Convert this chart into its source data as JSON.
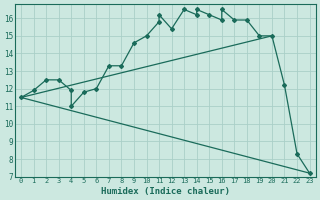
{
  "xlabel": "Humidex (Indice chaleur)",
  "bg_color": "#cce8e0",
  "grid_color": "#aacfc8",
  "line_color": "#1a6b5a",
  "xlim": [
    -0.5,
    23.5
  ],
  "ylim": [
    7,
    16.8
  ],
  "xticks": [
    0,
    1,
    2,
    3,
    4,
    5,
    6,
    7,
    8,
    9,
    10,
    11,
    12,
    13,
    14,
    15,
    16,
    17,
    18,
    19,
    20,
    21,
    22,
    23
  ],
  "yticks": [
    7,
    8,
    9,
    10,
    11,
    12,
    13,
    14,
    15,
    16
  ],
  "series1_x": [
    0,
    1,
    2,
    3,
    4,
    4,
    5,
    6,
    7,
    8,
    9,
    10,
    11,
    11,
    12,
    13,
    14,
    14,
    15,
    16,
    16,
    17,
    18,
    19,
    20,
    21,
    22,
    23
  ],
  "series1_y": [
    11.5,
    11.9,
    12.5,
    12.5,
    11.9,
    11.0,
    11.8,
    12.0,
    13.3,
    13.3,
    14.6,
    15.0,
    15.8,
    16.2,
    15.4,
    16.5,
    16.2,
    16.5,
    16.2,
    15.9,
    16.5,
    15.9,
    15.9,
    15.0,
    15.0,
    12.2,
    8.3,
    7.2
  ],
  "series2_x": [
    0,
    20
  ],
  "series2_y": [
    11.5,
    15.0
  ],
  "series3_x": [
    0,
    23
  ],
  "series3_y": [
    11.5,
    7.2
  ],
  "xtick_fontsize": 5.0,
  "ytick_fontsize": 5.5,
  "xlabel_fontsize": 6.5
}
